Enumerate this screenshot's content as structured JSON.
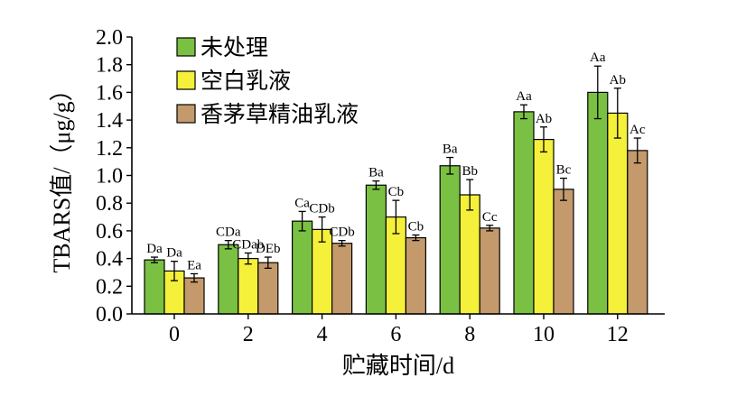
{
  "chart_data": {
    "type": "bar",
    "xlabel": "贮藏时间/d",
    "ylabel": "TBARS值/（μg/g）",
    "ylim": [
      0,
      2.0
    ],
    "yticks": [
      "0.0",
      "0.2",
      "0.4",
      "0.6",
      "0.8",
      "1.0",
      "1.2",
      "1.4",
      "1.6",
      "1.8",
      "2.0"
    ],
    "categories": [
      "0",
      "2",
      "4",
      "6",
      "8",
      "10",
      "12"
    ],
    "legend_position": "top-left",
    "series": [
      {
        "name": "未处理",
        "color": "#7ac143",
        "values": [
          0.39,
          0.5,
          0.67,
          0.93,
          1.07,
          1.46,
          1.6
        ],
        "errors": [
          0.02,
          0.03,
          0.07,
          0.03,
          0.06,
          0.05,
          0.19
        ],
        "labels": [
          "Da",
          "CDa",
          "Ca",
          "Ba",
          "Ba",
          "Aa",
          "Aa"
        ]
      },
      {
        "name": "空白乳液",
        "color": "#f5f03a",
        "values": [
          0.31,
          0.4,
          0.61,
          0.7,
          0.86,
          1.26,
          1.45
        ],
        "errors": [
          0.07,
          0.04,
          0.09,
          0.12,
          0.11,
          0.09,
          0.18
        ],
        "labels": [
          "Da",
          "CDab",
          "CDb",
          "Cb",
          "Bb",
          "Ab",
          "Ab"
        ]
      },
      {
        "name": "香茅草精油乳液",
        "color": "#c49a6c",
        "values": [
          0.26,
          0.37,
          0.51,
          0.55,
          0.62,
          0.9,
          1.18
        ],
        "errors": [
          0.03,
          0.04,
          0.02,
          0.02,
          0.02,
          0.08,
          0.09
        ],
        "labels": [
          "Ea",
          "DEb",
          "CDb",
          "Cb",
          "Cc",
          "Bc",
          "Ac"
        ]
      }
    ]
  }
}
